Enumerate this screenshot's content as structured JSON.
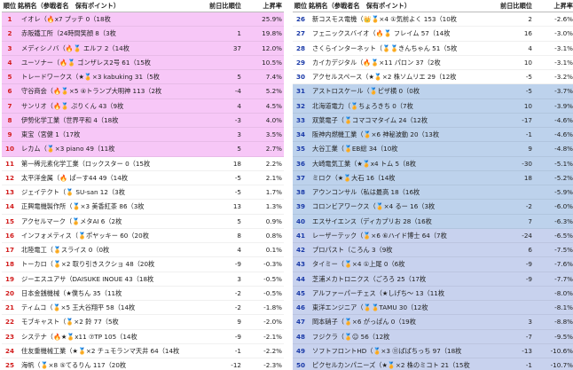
{
  "headers": {
    "rank": "順位",
    "name": "銘柄名（参戦者名　保有ポイント）",
    "diff": "前日比順位",
    "rate": "上昇率"
  },
  "colors": {
    "top10": "#f7c7f7",
    "middle": "#ffffff",
    "bottom": "#bdd2ec",
    "bottom_alt": "#c8d2ee",
    "rank_top": "#d21c1c",
    "rank_bottom": "#1a3aa8"
  },
  "left": [
    {
      "rank": "1",
      "name": "イオレ（🔥x7 プッチ 0（18枚",
      "diff": "",
      "rate": "25.9%"
    },
    {
      "rank": "2",
      "name": "赤阪鐵工所（24時間笑顔 8（3枚",
      "diff": "1",
      "rate": "19.8%"
    },
    {
      "rank": "3",
      "name": "メディシノバ（🔥🏅 エルフ 2（14枚",
      "diff": "37",
      "rate": "12.0%"
    },
    {
      "rank": "4",
      "name": "ユーソナー（🔥🏅 ゴンザレス2号 61（15枚",
      "diff": "",
      "rate": "10.5%"
    },
    {
      "rank": "5",
      "name": "トレードワークス（★🏅×3 kabuking 31（5枚",
      "diff": "5",
      "rate": "7.4%"
    },
    {
      "rank": "6",
      "name": "守谷商会（🔥🏅×5 ④トランプ大明神 113（2枚",
      "diff": "-4",
      "rate": "5.2%"
    },
    {
      "rank": "7",
      "name": "サンリオ（🔥🏅 ぷりくん 43（9枚",
      "diff": "4",
      "rate": "4.5%"
    },
    {
      "rank": "8",
      "name": "伊勢化学工業（世界平和 4（18枚",
      "diff": "-3",
      "rate": "4.0%"
    },
    {
      "rank": "9",
      "name": "東宝（宮健 1（17枚",
      "diff": "3",
      "rate": "3.5%"
    },
    {
      "rank": "10",
      "name": "レカム（🏅×3 piano 49（11枚",
      "diff": "5",
      "rate": "2.7%"
    },
    {
      "rank": "11",
      "name": "第一稀元素化学工業（ロックスター 0（15枚",
      "diff": "18",
      "rate": "2.2%"
    },
    {
      "rank": "12",
      "name": "太平洋金属（🔥 ぱーす44 49（14枚",
      "diff": "-5",
      "rate": "2.1%"
    },
    {
      "rank": "13",
      "name": "ジェイテクト（🏅 SU-san 12（3枚",
      "diff": "-5",
      "rate": "1.7%"
    },
    {
      "rank": "14",
      "name": "正興電機製作所（🏅×3 美香紅茶 86（3枚",
      "diff": "13",
      "rate": "1.3%"
    },
    {
      "rank": "15",
      "name": "アクセルマーク（🏅メタAI 6（2枚",
      "diff": "5",
      "rate": "0.9%"
    },
    {
      "rank": "16",
      "name": "インフォメティス（🏅ポヤッキー 60（20枚",
      "diff": "8",
      "rate": "0.8%"
    },
    {
      "rank": "17",
      "name": "北陸電工（🏅スライス 0（0枚",
      "diff": "4",
      "rate": "0.1%"
    },
    {
      "rank": "18",
      "name": "トーカロ（🏅×2 取り引きスクショ 48（20枚",
      "diff": "-9",
      "rate": "-0.3%"
    },
    {
      "rank": "19",
      "name": "ジーエスユアサ（DAISUKE INOUE 43（18枚",
      "diff": "3",
      "rate": "-0.5%"
    },
    {
      "rank": "20",
      "name": "日本金銭機械（★僕ちん 35（11枚",
      "diff": "-2",
      "rate": "-0.5%"
    },
    {
      "rank": "21",
      "name": "ティムコ（🏅×5 王大谷翔平 58（14枚",
      "diff": "-2",
      "rate": "-1.8%"
    },
    {
      "rank": "22",
      "name": "モブキャスト（🏅×2 鈴 77（5枚",
      "diff": "9",
      "rate": "-2.0%"
    },
    {
      "rank": "23",
      "name": "システナ（🔥★🏅x11 ⑦TP 105（14枚",
      "diff": "-9",
      "rate": "-2.1%"
    },
    {
      "rank": "24",
      "name": "住友重機械工業（★🏅×2 チュモランマ天井 64（14枚",
      "diff": "-1",
      "rate": "-2.2%"
    },
    {
      "rank": "25",
      "name": "海帆（🏅×8 ⑤てるりん 117（20枚",
      "diff": "-12",
      "rate": "-2.3%"
    }
  ],
  "right": [
    {
      "rank": "26",
      "name": "新コスモス電機（👑🏅×4 ①気前よく 153（10枚",
      "diff": "2",
      "rate": "-2.6%"
    },
    {
      "rank": "27",
      "name": "フェニックスバイオ（🔥🏅 フレイム 57（14枚",
      "diff": "16",
      "rate": "-3.0%"
    },
    {
      "rank": "28",
      "name": "さくらインターネット（🏅🏅きんちゃん 51（5枚",
      "diff": "4",
      "rate": "-3.1%"
    },
    {
      "rank": "29",
      "name": "カイカデジタル（🔥🏅×11 パロン 37（2枚",
      "diff": "10",
      "rate": "-3.1%"
    },
    {
      "rank": "30",
      "name": "アクセルスペース（★🏅×2 株ソムリエ 29（12枚",
      "diff": "-5",
      "rate": "-3.2%"
    },
    {
      "rank": "31",
      "name": "アストロスケール（🏅ピザ横 0（0枚",
      "diff": "-5",
      "rate": "-3.7%"
    },
    {
      "rank": "32",
      "name": "北海道電力（🏅ちょろきち 0（7枚",
      "diff": "10",
      "rate": "-3.9%"
    },
    {
      "rank": "33",
      "name": "双葉電子（🏅コマコマタイム 24（12枚",
      "diff": "-17",
      "rate": "-4.6%"
    },
    {
      "rank": "34",
      "name": "阪神内燃機工業（🏅×6 神秘波動 20（13枚",
      "diff": "-1",
      "rate": "-4.6%"
    },
    {
      "rank": "35",
      "name": "大谷工業（🏅EB総 34（10枚",
      "diff": "9",
      "rate": "-4.8%"
    },
    {
      "rank": "36",
      "name": "大崎電気工業（★🏅x4 トム 5（8枚",
      "diff": "-30",
      "rate": "-5.1%"
    },
    {
      "rank": "37",
      "name": "ミロク（★🏅大石 16（14枚",
      "diff": "18",
      "rate": "-5.2%"
    },
    {
      "rank": "38",
      "name": "アウンコンサル（私は最高 18（16枚",
      "diff": "",
      "rate": "-5.9%"
    },
    {
      "rank": "39",
      "name": "コロンビアワークス（🏅×4 るー 16（3枚",
      "diff": "-2",
      "rate": "-6.0%"
    },
    {
      "rank": "40",
      "name": "エスサイエンス（ディカプリお 28（16枚",
      "diff": "7",
      "rate": "-6.3%"
    },
    {
      "rank": "41",
      "name": "レーザーテック（🏅×6 ⑥ハイド博士 64（7枚",
      "diff": "-24",
      "rate": "-6.5%"
    },
    {
      "rank": "42",
      "name": "プロパスト（ころん 3（9枚",
      "diff": "6",
      "rate": "-7.5%"
    },
    {
      "rank": "43",
      "name": "タイミー（🏅×4 ①上尾 0（6枚",
      "diff": "-9",
      "rate": "-7.6%"
    },
    {
      "rank": "44",
      "name": "芝浦メカトロニクス（ごろろ 25（17枚",
      "diff": "-9",
      "rate": "-7.7%"
    },
    {
      "rank": "45",
      "name": "アルファーパーチェス（★しげち～ 13（11枚",
      "diff": "",
      "rate": "-8.0%"
    },
    {
      "rank": "46",
      "name": "東洋エンジニア（🏅🏅TAMU 30（12枚",
      "diff": "",
      "rate": "-8.1%"
    },
    {
      "rank": "47",
      "name": "岡本硝子（🏅×6 がっぱん 0（19枚",
      "diff": "3",
      "rate": "-8.8%"
    },
    {
      "rank": "48",
      "name": "フジクラ（🏅☺ 56（12枚",
      "diff": "-7",
      "rate": "-9.5%"
    },
    {
      "rank": "49",
      "name": "ソフトフロントHD（🏅×3 ⑪ばばちっち 97（18枚",
      "diff": "-13",
      "rate": "-10.6%"
    },
    {
      "rank": "50",
      "name": "ピクセルカンパニーズ（★🏅×2 株のミコト 21（15枚",
      "diff": "-1",
      "rate": "-10.7%"
    }
  ]
}
